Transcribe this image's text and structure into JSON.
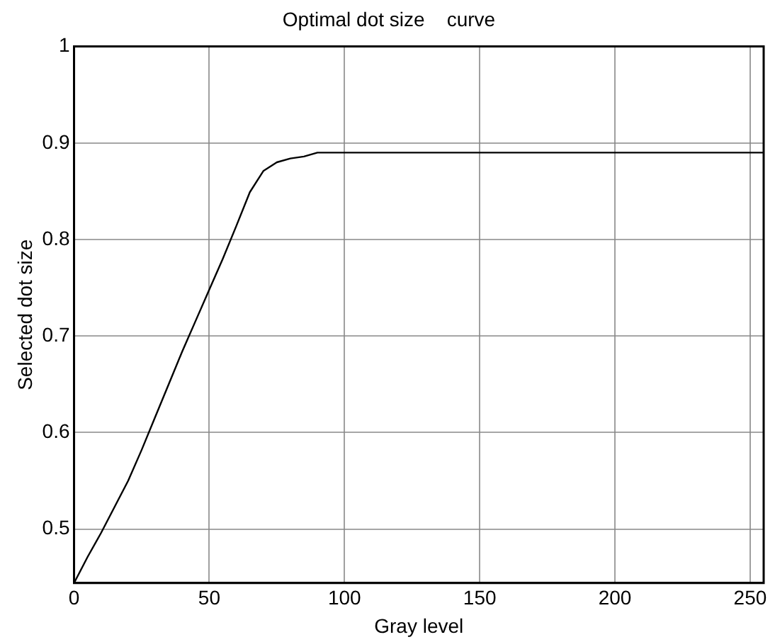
{
  "chart_data": {
    "type": "line",
    "title": "Optimal dot size    curve",
    "xlabel": "Gray level",
    "ylabel": "Selected dot size",
    "x": [
      0,
      5,
      10,
      15,
      20,
      25,
      30,
      35,
      40,
      45,
      50,
      55,
      60,
      65,
      70,
      75,
      80,
      85,
      90,
      255
    ],
    "series": [
      {
        "color": "#000000",
        "values": [
          0.444,
          0.471,
          0.496,
          0.523,
          0.55,
          0.582,
          0.616,
          0.65,
          0.684,
          0.716,
          0.748,
          0.78,
          0.814,
          0.849,
          0.871,
          0.88,
          0.884,
          0.886,
          0.89,
          0.89
        ]
      }
    ],
    "xlim": [
      0,
      255
    ],
    "xticks": [
      0,
      50,
      100,
      150,
      200,
      250
    ],
    "ylim": [
      0.444,
      1
    ],
    "yticks": [
      0.5,
      0.6,
      0.7,
      0.8,
      0.9,
      1
    ],
    "grid": true,
    "legend": false,
    "marker": "none",
    "line_style": "solid"
  }
}
